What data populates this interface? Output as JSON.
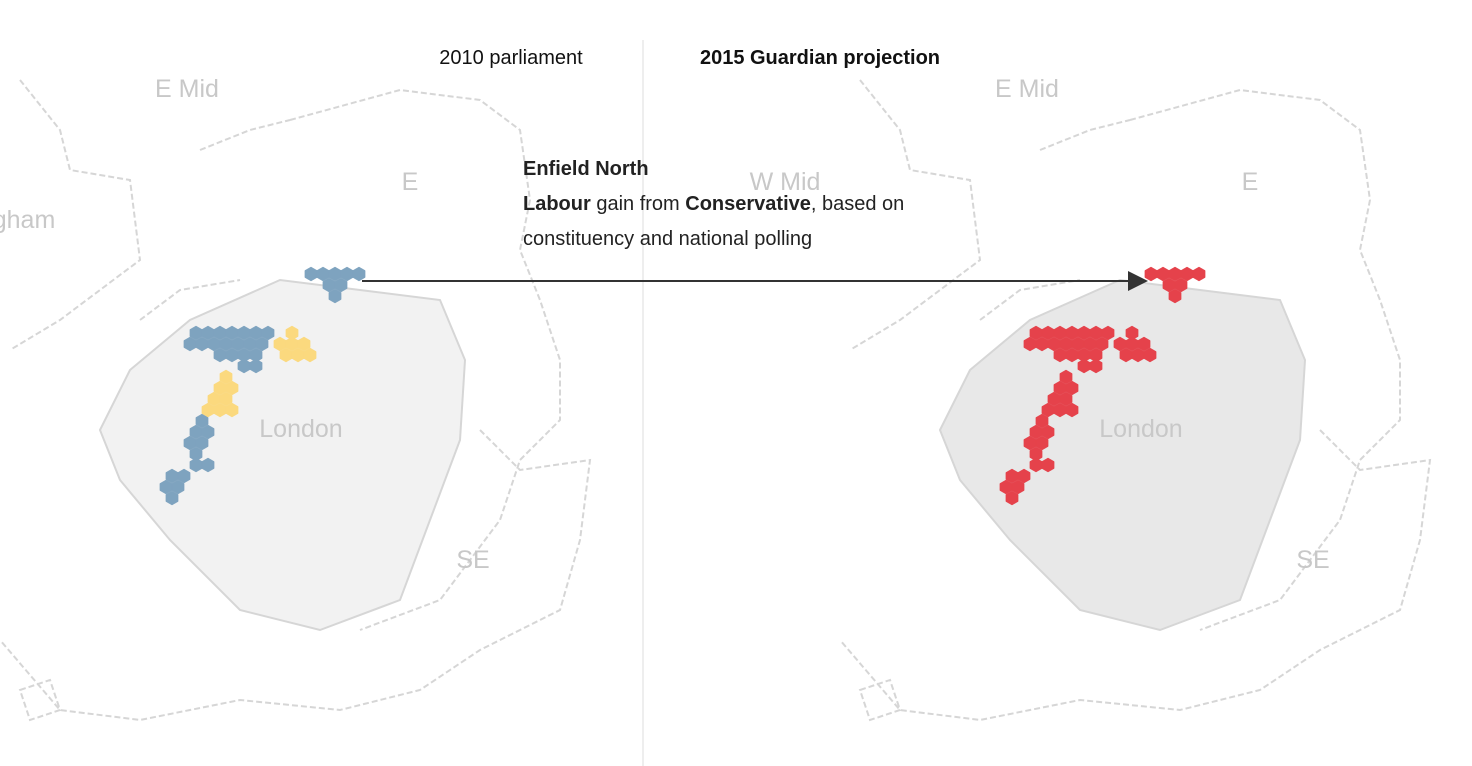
{
  "panels": [
    {
      "title": "2010 parliament",
      "regions": [
        "E Mid",
        "E",
        "gham",
        "London",
        "SE"
      ]
    },
    {
      "title": "2015 Guardian projection",
      "regions": [
        "E Mid",
        "W Mid",
        "E",
        "London",
        "SE"
      ]
    }
  ],
  "tooltip": {
    "constituency": "Enfield North",
    "winner": "Labour",
    "gain_text": " gain from ",
    "loser": "Conservative",
    "note": ", based on constituency and national polling"
  }
}
